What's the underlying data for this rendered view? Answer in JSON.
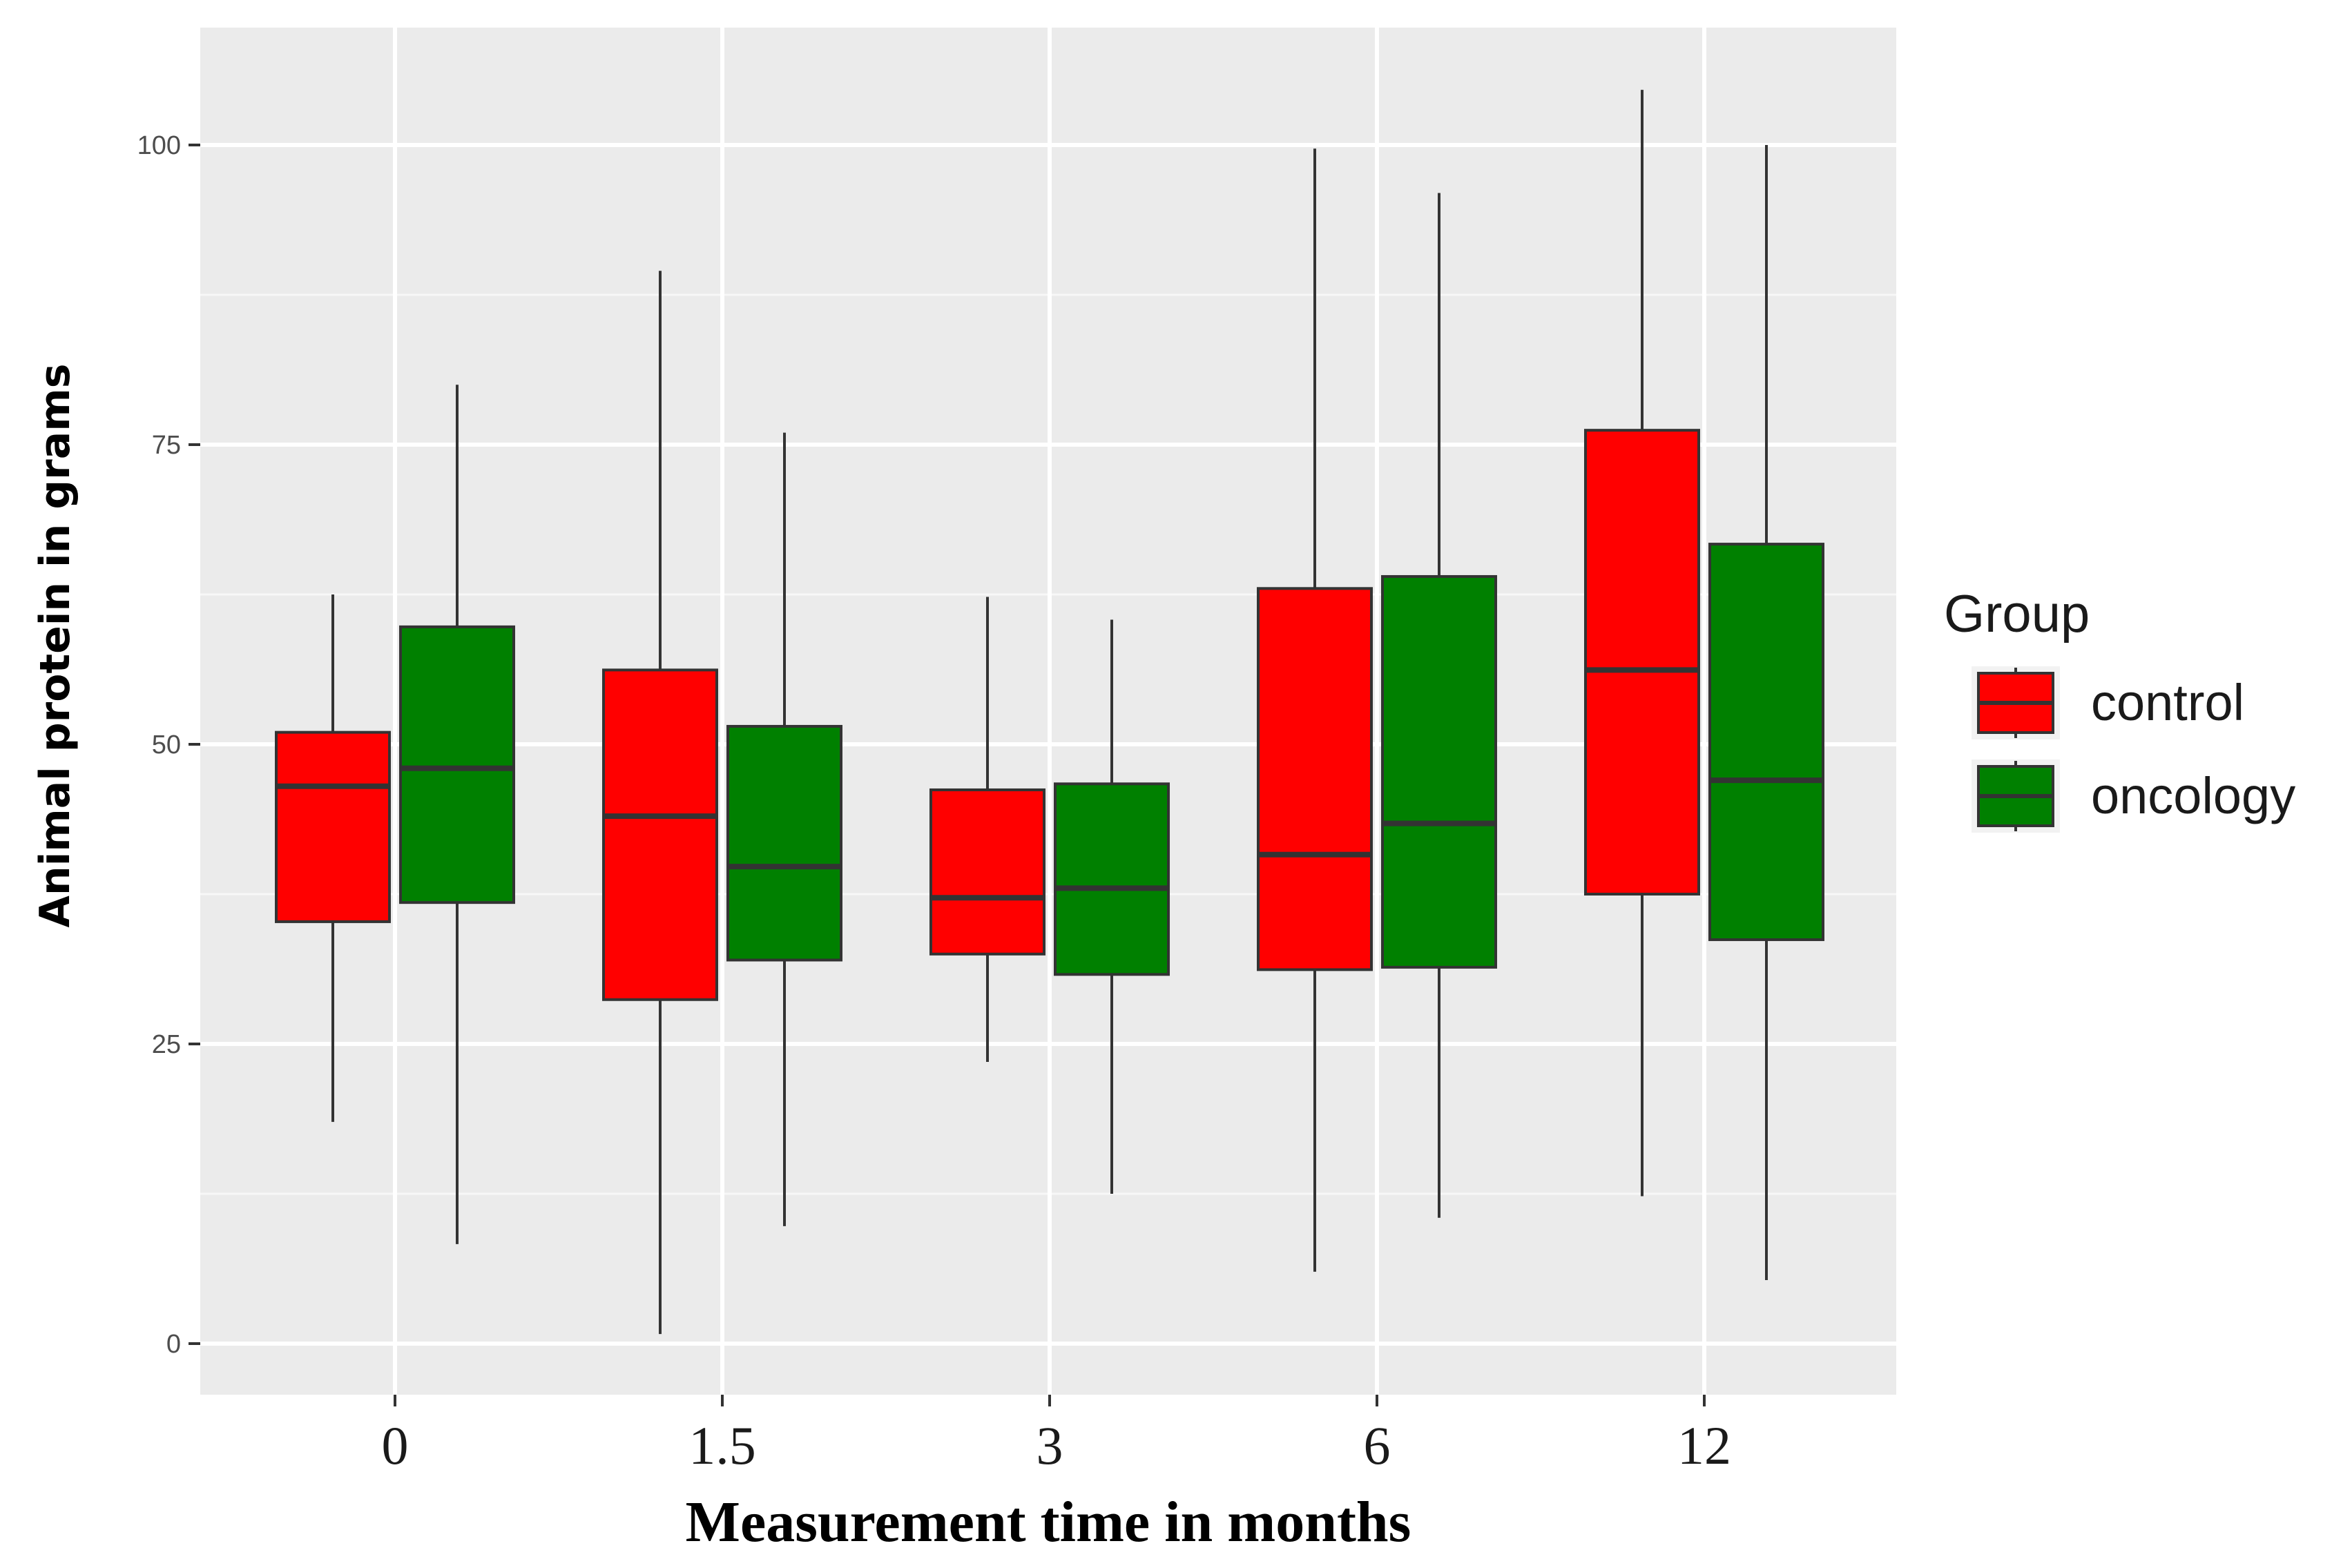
{
  "chart_data": {
    "type": "boxplot",
    "title": "",
    "xlabel": "Measurement time in months",
    "ylabel": "Animal protein in grams",
    "categories": [
      "0",
      "1.5",
      "3",
      "6",
      "12"
    ],
    "ylim": [
      -4,
      109
    ],
    "yticks": [
      0,
      25,
      50,
      75,
      100
    ],
    "grid": true,
    "legend": {
      "title": "Group",
      "position": "right"
    },
    "series": [
      {
        "name": "control",
        "color": "#ff0000",
        "boxes": [
          {
            "min": 18.5,
            "q1": 35.2,
            "median": 46.5,
            "q3": 51.0,
            "max": 62.5
          },
          {
            "min": 0.8,
            "q1": 28.7,
            "median": 44.0,
            "q3": 56.2,
            "max": 89.5
          },
          {
            "min": 23.5,
            "q1": 32.5,
            "median": 37.2,
            "q3": 46.2,
            "max": 62.3
          },
          {
            "min": 6.0,
            "q1": 31.2,
            "median": 40.8,
            "q3": 63.0,
            "max": 99.7
          },
          {
            "min": 12.3,
            "q1": 37.5,
            "median": 56.2,
            "q3": 76.2,
            "max": 104.6
          }
        ]
      },
      {
        "name": "oncology",
        "color": "#008000",
        "boxes": [
          {
            "min": 8.3,
            "q1": 36.8,
            "median": 48.0,
            "q3": 59.8,
            "max": 80.0
          },
          {
            "min": 9.8,
            "q1": 32.0,
            "median": 39.8,
            "q3": 51.5,
            "max": 76.0
          },
          {
            "min": 12.5,
            "q1": 30.8,
            "median": 38.0,
            "q3": 46.7,
            "max": 60.4
          },
          {
            "min": 10.5,
            "q1": 31.4,
            "median": 43.4,
            "q3": 64.0,
            "max": 96.0
          },
          {
            "min": 5.3,
            "q1": 33.7,
            "median": 47.0,
            "q3": 66.7,
            "max": 100.0
          }
        ]
      }
    ]
  }
}
